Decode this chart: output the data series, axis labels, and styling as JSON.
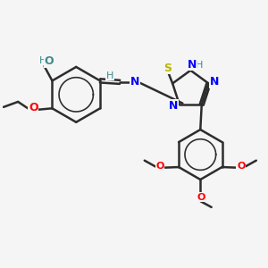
{
  "background_color": "#f5f5f5",
  "bond_color": "#2d2d2d",
  "bond_width": 1.8,
  "figsize": [
    3.0,
    3.0
  ],
  "dpi": 100,
  "xlim": [
    0,
    10
  ],
  "ylim": [
    0,
    10
  ]
}
